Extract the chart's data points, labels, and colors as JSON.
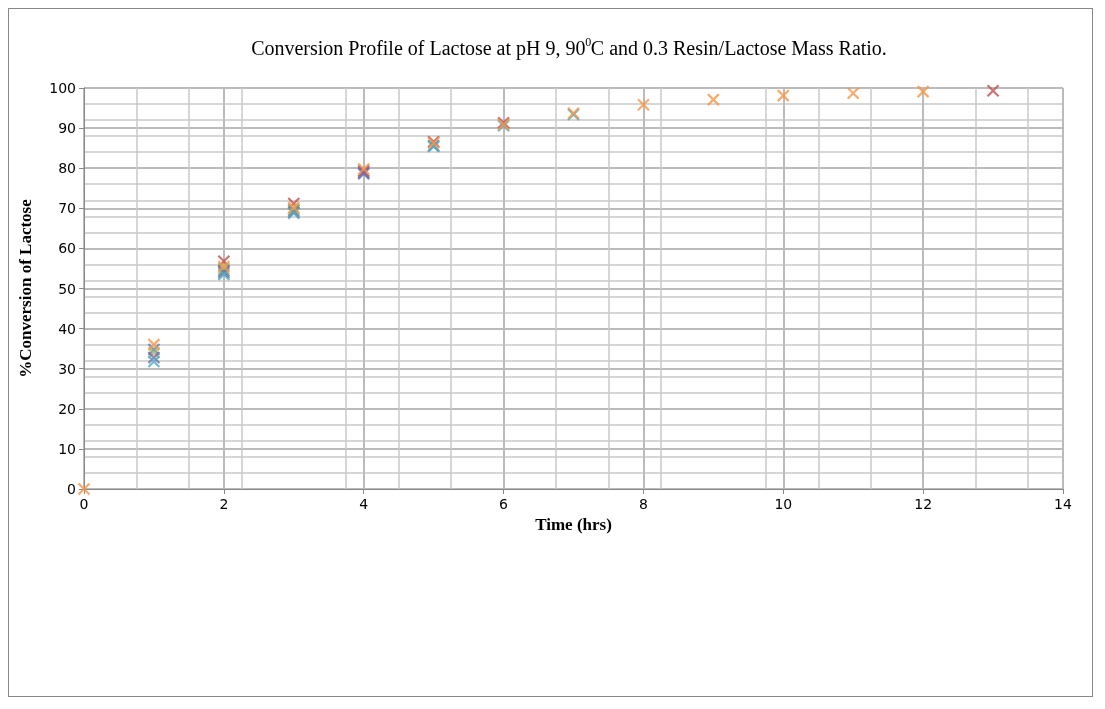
{
  "chart_data": {
    "type": "scatter",
    "title": "Conversion Profile of Lactose at pH 9, 90$^{0}$C and 0.3 Resin/Lactose Mass Ratio.",
    "xlabel": "Time (hrs)",
    "ylabel": "%Conversion of Lactose",
    "xlim": [
      0,
      14
    ],
    "xticks": [
      0,
      2,
      4,
      6,
      8,
      10,
      12,
      14
    ],
    "ylim": [
      0,
      100
    ],
    "yticks": [
      0,
      10,
      20,
      30,
      40,
      50,
      60,
      70,
      80,
      90,
      100
    ],
    "grid": true,
    "marker": "cross",
    "series": [
      {
        "color": "#4f81bd",
        "x": [
          1,
          2,
          3,
          4,
          5
        ],
        "values": [
          34.8,
          54.5,
          69.5,
          78.6,
          85.6
        ]
      },
      {
        "color": "#c0504d",
        "x": [
          2,
          3,
          4,
          5,
          6,
          13
        ],
        "values": [
          56.8,
          71.2,
          79.3,
          86.6,
          91.3,
          99.3
        ]
      },
      {
        "color": "#9bbb59",
        "x": [
          1,
          2,
          3
        ],
        "values": [
          34,
          55,
          69.8
        ]
      },
      {
        "color": "#8064a2",
        "x": [
          1,
          2,
          3,
          4
        ],
        "values": [
          32.8,
          54,
          69,
          78.9
        ]
      },
      {
        "color": "#4bacc6",
        "x": [
          1,
          2,
          3,
          5,
          6,
          7
        ],
        "values": [
          31.8,
          53.5,
          68.8,
          85.4,
          90.6,
          93.4
        ]
      },
      {
        "color": "#f79646",
        "x": [
          0,
          1,
          2,
          3,
          4,
          5,
          6,
          7,
          8,
          9,
          10,
          11,
          12
        ],
        "values": [
          0,
          36,
          55.5,
          70.2,
          79.8,
          86.3,
          90.9,
          93.7,
          95.8,
          97.1,
          98.1,
          98.7,
          99.1
        ]
      }
    ]
  }
}
